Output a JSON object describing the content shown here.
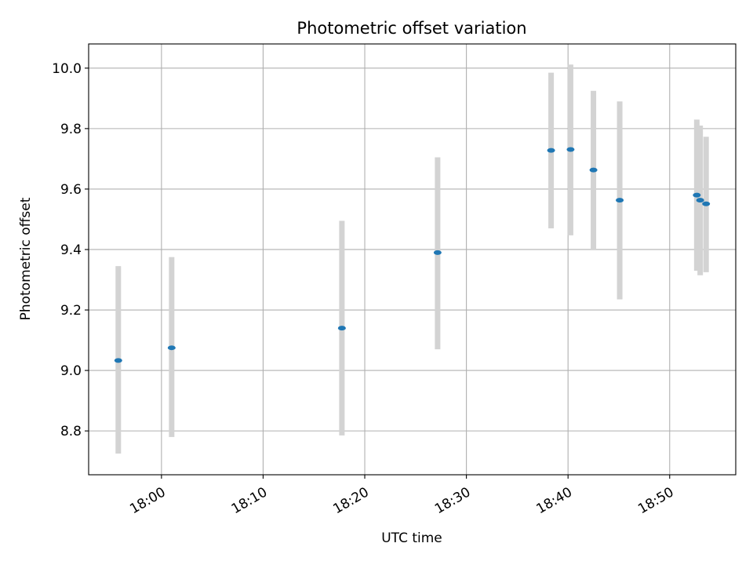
{
  "chart_data": {
    "type": "scatter",
    "title": "Photometric offset variation",
    "xlabel": "UTC time",
    "ylabel": "Photometric offset",
    "grid": true,
    "x_axis_kind": "time",
    "xlim": [
      "17:52:50",
      "18:56:30"
    ],
    "ylim": [
      8.655,
      10.08
    ],
    "x_ticks": [
      "18:00",
      "18:10",
      "18:20",
      "18:30",
      "18:40",
      "18:50"
    ],
    "y_ticks": [
      "8.8",
      "9.0",
      "9.2",
      "9.4",
      "9.6",
      "9.8",
      "10.0"
    ],
    "y_tick_values": [
      8.8,
      9.0,
      9.2,
      9.4,
      9.6,
      9.8,
      10.0
    ],
    "series": [
      {
        "marker_color": "#1f77b4",
        "errorbar_color": "#d3d3d3",
        "points": [
          {
            "x": "17:55:45",
            "y": 9.033,
            "y_low": 8.725,
            "y_high": 9.345
          },
          {
            "x": "18:01:00",
            "y": 9.075,
            "y_low": 8.78,
            "y_high": 9.375
          },
          {
            "x": "18:17:45",
            "y": 9.14,
            "y_low": 8.785,
            "y_high": 9.495
          },
          {
            "x": "18:27:10",
            "y": 9.39,
            "y_low": 9.07,
            "y_high": 9.705
          },
          {
            "x": "18:38:20",
            "y": 9.728,
            "y_low": 9.47,
            "y_high": 9.985
          },
          {
            "x": "18:40:15",
            "y": 9.731,
            "y_low": 9.447,
            "y_high": 10.012
          },
          {
            "x": "18:42:30",
            "y": 9.663,
            "y_low": 9.4,
            "y_high": 9.925
          },
          {
            "x": "18:45:05",
            "y": 9.563,
            "y_low": 9.235,
            "y_high": 9.89
          },
          {
            "x": "18:52:40",
            "y": 9.58,
            "y_low": 9.33,
            "y_high": 9.83
          },
          {
            "x": "18:53:00",
            "y": 9.563,
            "y_low": 9.315,
            "y_high": 9.81
          },
          {
            "x": "18:53:35",
            "y": 9.551,
            "y_low": 9.325,
            "y_high": 9.773
          }
        ]
      }
    ]
  }
}
